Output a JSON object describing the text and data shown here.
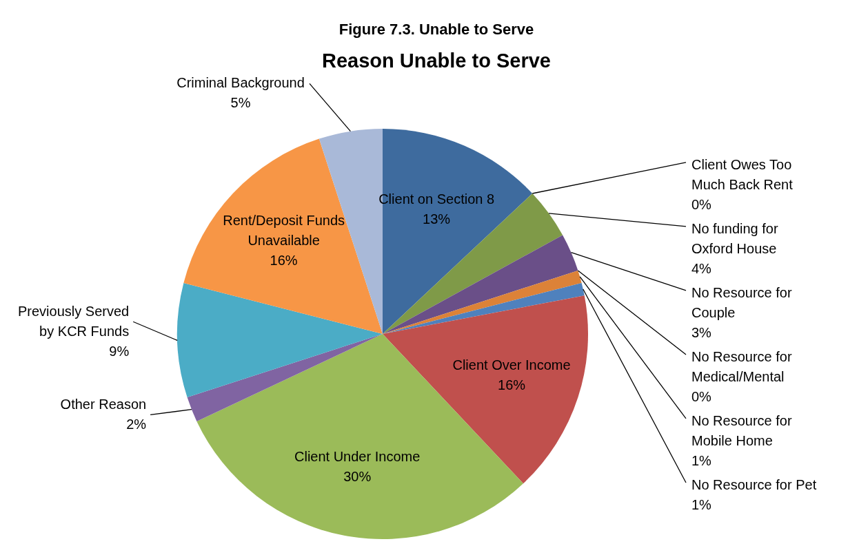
{
  "chart_data": {
    "type": "pie",
    "title": "Figure 7.3.   Unable to Serve",
    "subtitle": "Reason Unable to Serve",
    "categories": [
      "Client on Section 8",
      "Client Owes Too Much Back Rent",
      "No funding for Oxford House",
      "No Resource for Couple",
      "No Resource for Medical/Mental",
      "No Resource for Mobile Home",
      "No Resource for Pet",
      "Client Over Income",
      "Client Under Income",
      "Other Reason",
      "Previously Served by KCR Funds",
      "Rent/Deposit Funds Unavailable",
      "Criminal Background"
    ],
    "values": [
      13,
      0,
      4,
      3,
      0,
      1,
      1,
      16,
      30,
      2,
      9,
      16,
      5
    ],
    "value_labels": [
      "13%",
      "0%",
      "4%",
      "3%",
      "0%",
      "1%",
      "1%",
      "16%",
      "30%",
      "2%",
      "9%",
      "16%",
      "5%"
    ],
    "colors": [
      "#3e6b9e",
      "#a5403d",
      "#7f9a48",
      "#6a4f88",
      "#3e97ad",
      "#dc8238",
      "#4f81bd",
      "#c0504d",
      "#9bbb59",
      "#8064a2",
      "#4bacc6",
      "#f79646",
      "#a9b9d8"
    ],
    "legend": false
  }
}
